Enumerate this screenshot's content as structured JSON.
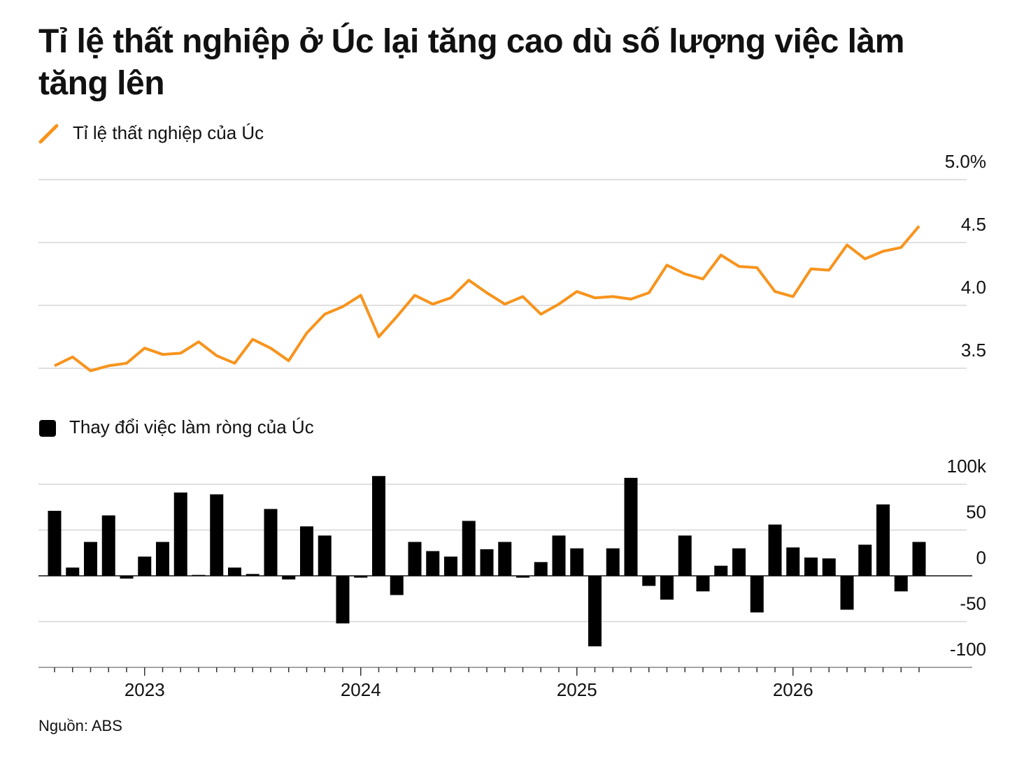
{
  "title": "Tỉ lệ thất nghiệp ở Úc lại tăng cao dù số lượng việc làm tăng lên",
  "source": "Nguồn: ABS",
  "chart_data": [
    {
      "type": "line",
      "series": [
        {
          "name": "Tỉ lệ thất nghiệp của Úc",
          "color": "#f7941d",
          "values": [
            3.52,
            3.59,
            3.48,
            3.52,
            3.54,
            3.66,
            3.61,
            3.62,
            3.71,
            3.6,
            3.54,
            3.73,
            3.66,
            3.56,
            3.78,
            3.93,
            3.99,
            4.08,
            3.75,
            3.91,
            4.08,
            4.01,
            4.06,
            4.2,
            4.1,
            4.01,
            4.07,
            3.93,
            4.01,
            4.11,
            4.06,
            4.07,
            4.05,
            4.1,
            4.32,
            4.25,
            4.21,
            4.4,
            4.31,
            4.3,
            4.11,
            4.07,
            4.29,
            4.28,
            4.48,
            4.37,
            4.43,
            4.46,
            4.63
          ]
        }
      ],
      "ylim": [
        3.5,
        5.0
      ],
      "yticks": [
        {
          "value": 5.0,
          "label": "5.0%"
        },
        4.5,
        {
          "value": 4.0,
          "label": "4.0"
        },
        3.5
      ],
      "grid": true
    },
    {
      "type": "bar",
      "categories": [
        null,
        null,
        null,
        null,
        null,
        "2023",
        null,
        null,
        null,
        null,
        null,
        null,
        null,
        null,
        null,
        null,
        null,
        "2024",
        null,
        null,
        null,
        null,
        null,
        null,
        null,
        null,
        null,
        null,
        null,
        "2025",
        null,
        null,
        null,
        null,
        null,
        null,
        null,
        null,
        null,
        null,
        null,
        "2026",
        null,
        null,
        null,
        null,
        null,
        null,
        null
      ],
      "series": [
        {
          "name": "Thay đổi việc làm ròng của Úc",
          "color": "#000000",
          "values": [
            71,
            9,
            37,
            66,
            -3,
            21,
            37,
            91,
            1,
            89,
            9,
            2,
            73,
            -4,
            54,
            44,
            -52,
            -2,
            109,
            -21,
            37,
            27,
            21,
            60,
            29,
            37,
            -2,
            15,
            44,
            30,
            -77,
            30,
            107,
            -11,
            -26,
            44,
            -17,
            11,
            30,
            -40,
            56,
            31,
            20,
            19,
            -37,
            34,
            78,
            -17,
            37
          ]
        }
      ],
      "ylim": [
        -100,
        100
      ],
      "yticks": [
        {
          "value": 100,
          "label": "100k"
        },
        50,
        0,
        -50,
        -100
      ],
      "grid": true
    }
  ]
}
